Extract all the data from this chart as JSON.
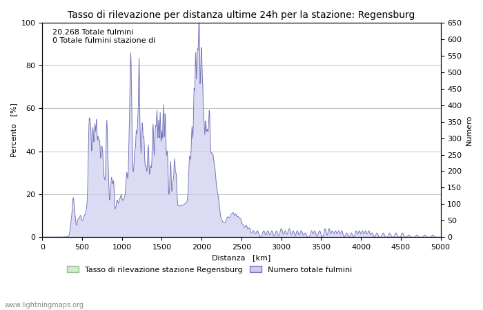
{
  "title": "Tasso di rilevazione per distanza ultime 24h per la stazione: Regensburg",
  "xlabel": "Distanza   [km]",
  "ylabel_left": "Percento   [%]",
  "ylabel_right": "Numero",
  "annotation_line1": "20.268 Totale fulmini",
  "annotation_line2": "0 Totale fulmini stazione di",
  "legend_label1": "Tasso di rilevazione stazione Regensburg",
  "legend_label2": "Numero totale fulmini",
  "watermark": "www.lightningmaps.org",
  "xlim": [
    0,
    5000
  ],
  "ylim_left": [
    0,
    100
  ],
  "ylim_right": [
    0,
    650
  ],
  "xticks": [
    0,
    500,
    1000,
    1500,
    2000,
    2500,
    3000,
    3500,
    4000,
    4500,
    5000
  ],
  "yticks_left": [
    0,
    20,
    40,
    60,
    80,
    100
  ],
  "yticks_right": [
    0,
    50,
    100,
    150,
    200,
    250,
    300,
    350,
    400,
    450,
    500,
    550,
    600,
    650
  ],
  "line_color": "#7777bb",
  "fill_color": "#ccccee",
  "fill_alpha": 0.7,
  "bg_color": "#ffffff",
  "grid_color": "#aaaaaa",
  "title_fontsize": 10,
  "label_fontsize": 8,
  "tick_fontsize": 8,
  "annotation_fontsize": 8
}
